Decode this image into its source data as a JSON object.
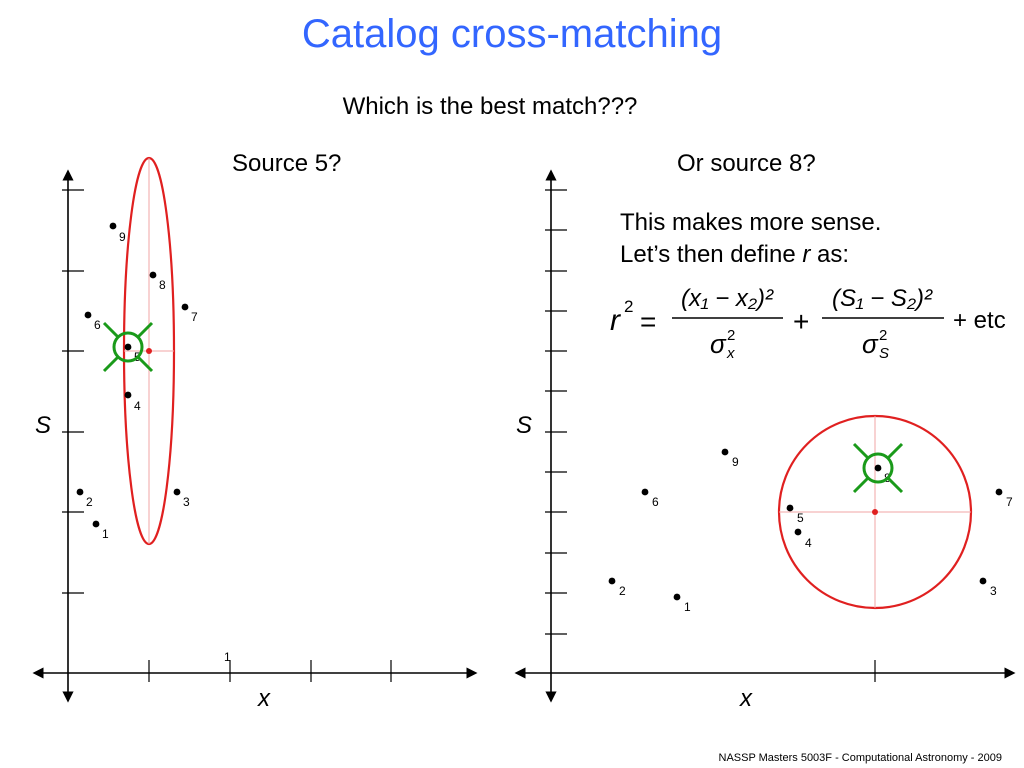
{
  "slide": {
    "title": "Catalog cross-matching",
    "subtitle": "Which is the best match???",
    "left_caption": "Source 5?",
    "right_caption": "Or source 8?",
    "explanation_line1": "This makes more sense.",
    "explanation_line2_before": "Let’s then define ",
    "explanation_r": "r",
    "explanation_line2_after": " as:",
    "equation": {
      "lhs": "r",
      "lhs_sup": "2",
      "eq": "=",
      "num1": "(x₁ − x₂)²",
      "den1": "σ",
      "den1_sub": "x",
      "den1_sup": "2",
      "plus": "+",
      "num2": "(S₁ − S₂)²",
      "den2": "σ",
      "den2_sub": "S",
      "den2_sup": "2",
      "tail": "+ etc"
    },
    "footer": "NASSP Masters 5003F - Computational Astronomy - 2009"
  },
  "panels": {
    "left": {
      "x_label": "x",
      "y_label": "S",
      "tick_label": "1",
      "sources": [
        {
          "label": "1"
        },
        {
          "label": "2"
        },
        {
          "label": "3"
        },
        {
          "label": "4"
        },
        {
          "label": "5"
        },
        {
          "label": "6"
        },
        {
          "label": "7"
        },
        {
          "label": "8"
        },
        {
          "label": "9"
        }
      ],
      "best_match": "5",
      "error_ellipse_color": "#e02020",
      "marker_color": "#1a9a1a"
    },
    "right": {
      "x_label": "x",
      "y_label": "S",
      "sources": [
        {
          "label": "1"
        },
        {
          "label": "2"
        },
        {
          "label": "3"
        },
        {
          "label": "4"
        },
        {
          "label": "5"
        },
        {
          "label": "6"
        },
        {
          "label": "7"
        },
        {
          "label": "8"
        },
        {
          "label": "9"
        }
      ],
      "best_match": "8",
      "error_circle_color": "#e02020",
      "marker_color": "#1a9a1a"
    }
  }
}
